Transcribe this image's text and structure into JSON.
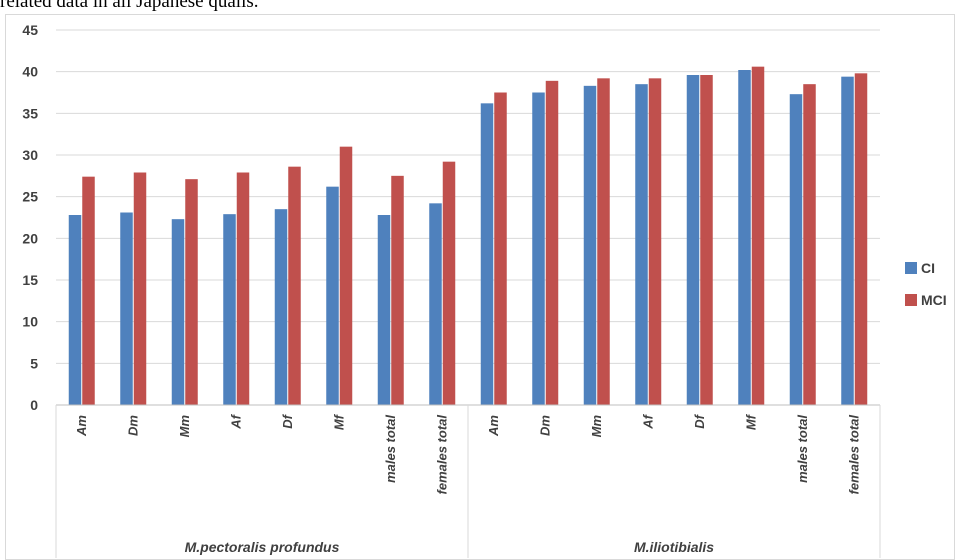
{
  "caption": "related data in all Japanese quails.",
  "chart_data": {
    "type": "bar",
    "categories": [
      "Am",
      "Dm",
      "Mm",
      "Af",
      "Df",
      "Mf",
      "males total",
      "females total",
      "Am",
      "Dm",
      "Mm",
      "Af",
      "Df",
      "Mf",
      "males total",
      "females total"
    ],
    "groups": [
      {
        "label": "M.pectoralis profundus",
        "categories": [
          "Am",
          "Dm",
          "Mm",
          "Af",
          "Df",
          "Mf",
          "males total",
          "females total"
        ]
      },
      {
        "label": "M.iliotibialis",
        "categories": [
          "Am",
          "Dm",
          "Mm",
          "Af",
          "Df",
          "Mf",
          "males total",
          "females total"
        ]
      }
    ],
    "series": [
      {
        "name": "CI",
        "color": "#4F81BD",
        "values": [
          22.8,
          23.1,
          22.3,
          22.9,
          23.5,
          26.2,
          22.8,
          24.2,
          36.2,
          37.5,
          38.3,
          38.5,
          39.6,
          40.2,
          37.3,
          39.4
        ]
      },
      {
        "name": "MCI",
        "color": "#C0504D",
        "values": [
          27.4,
          27.9,
          27.1,
          27.9,
          28.6,
          31.0,
          27.5,
          29.2,
          37.5,
          38.9,
          39.2,
          39.2,
          39.6,
          40.6,
          38.5,
          39.8
        ]
      }
    ],
    "ylim": [
      0,
      45
    ],
    "yticks": [
      "0",
      "5",
      "10",
      "15",
      "20",
      "25",
      "30",
      "35",
      "40",
      "45"
    ],
    "grid": true,
    "legend": "right"
  }
}
